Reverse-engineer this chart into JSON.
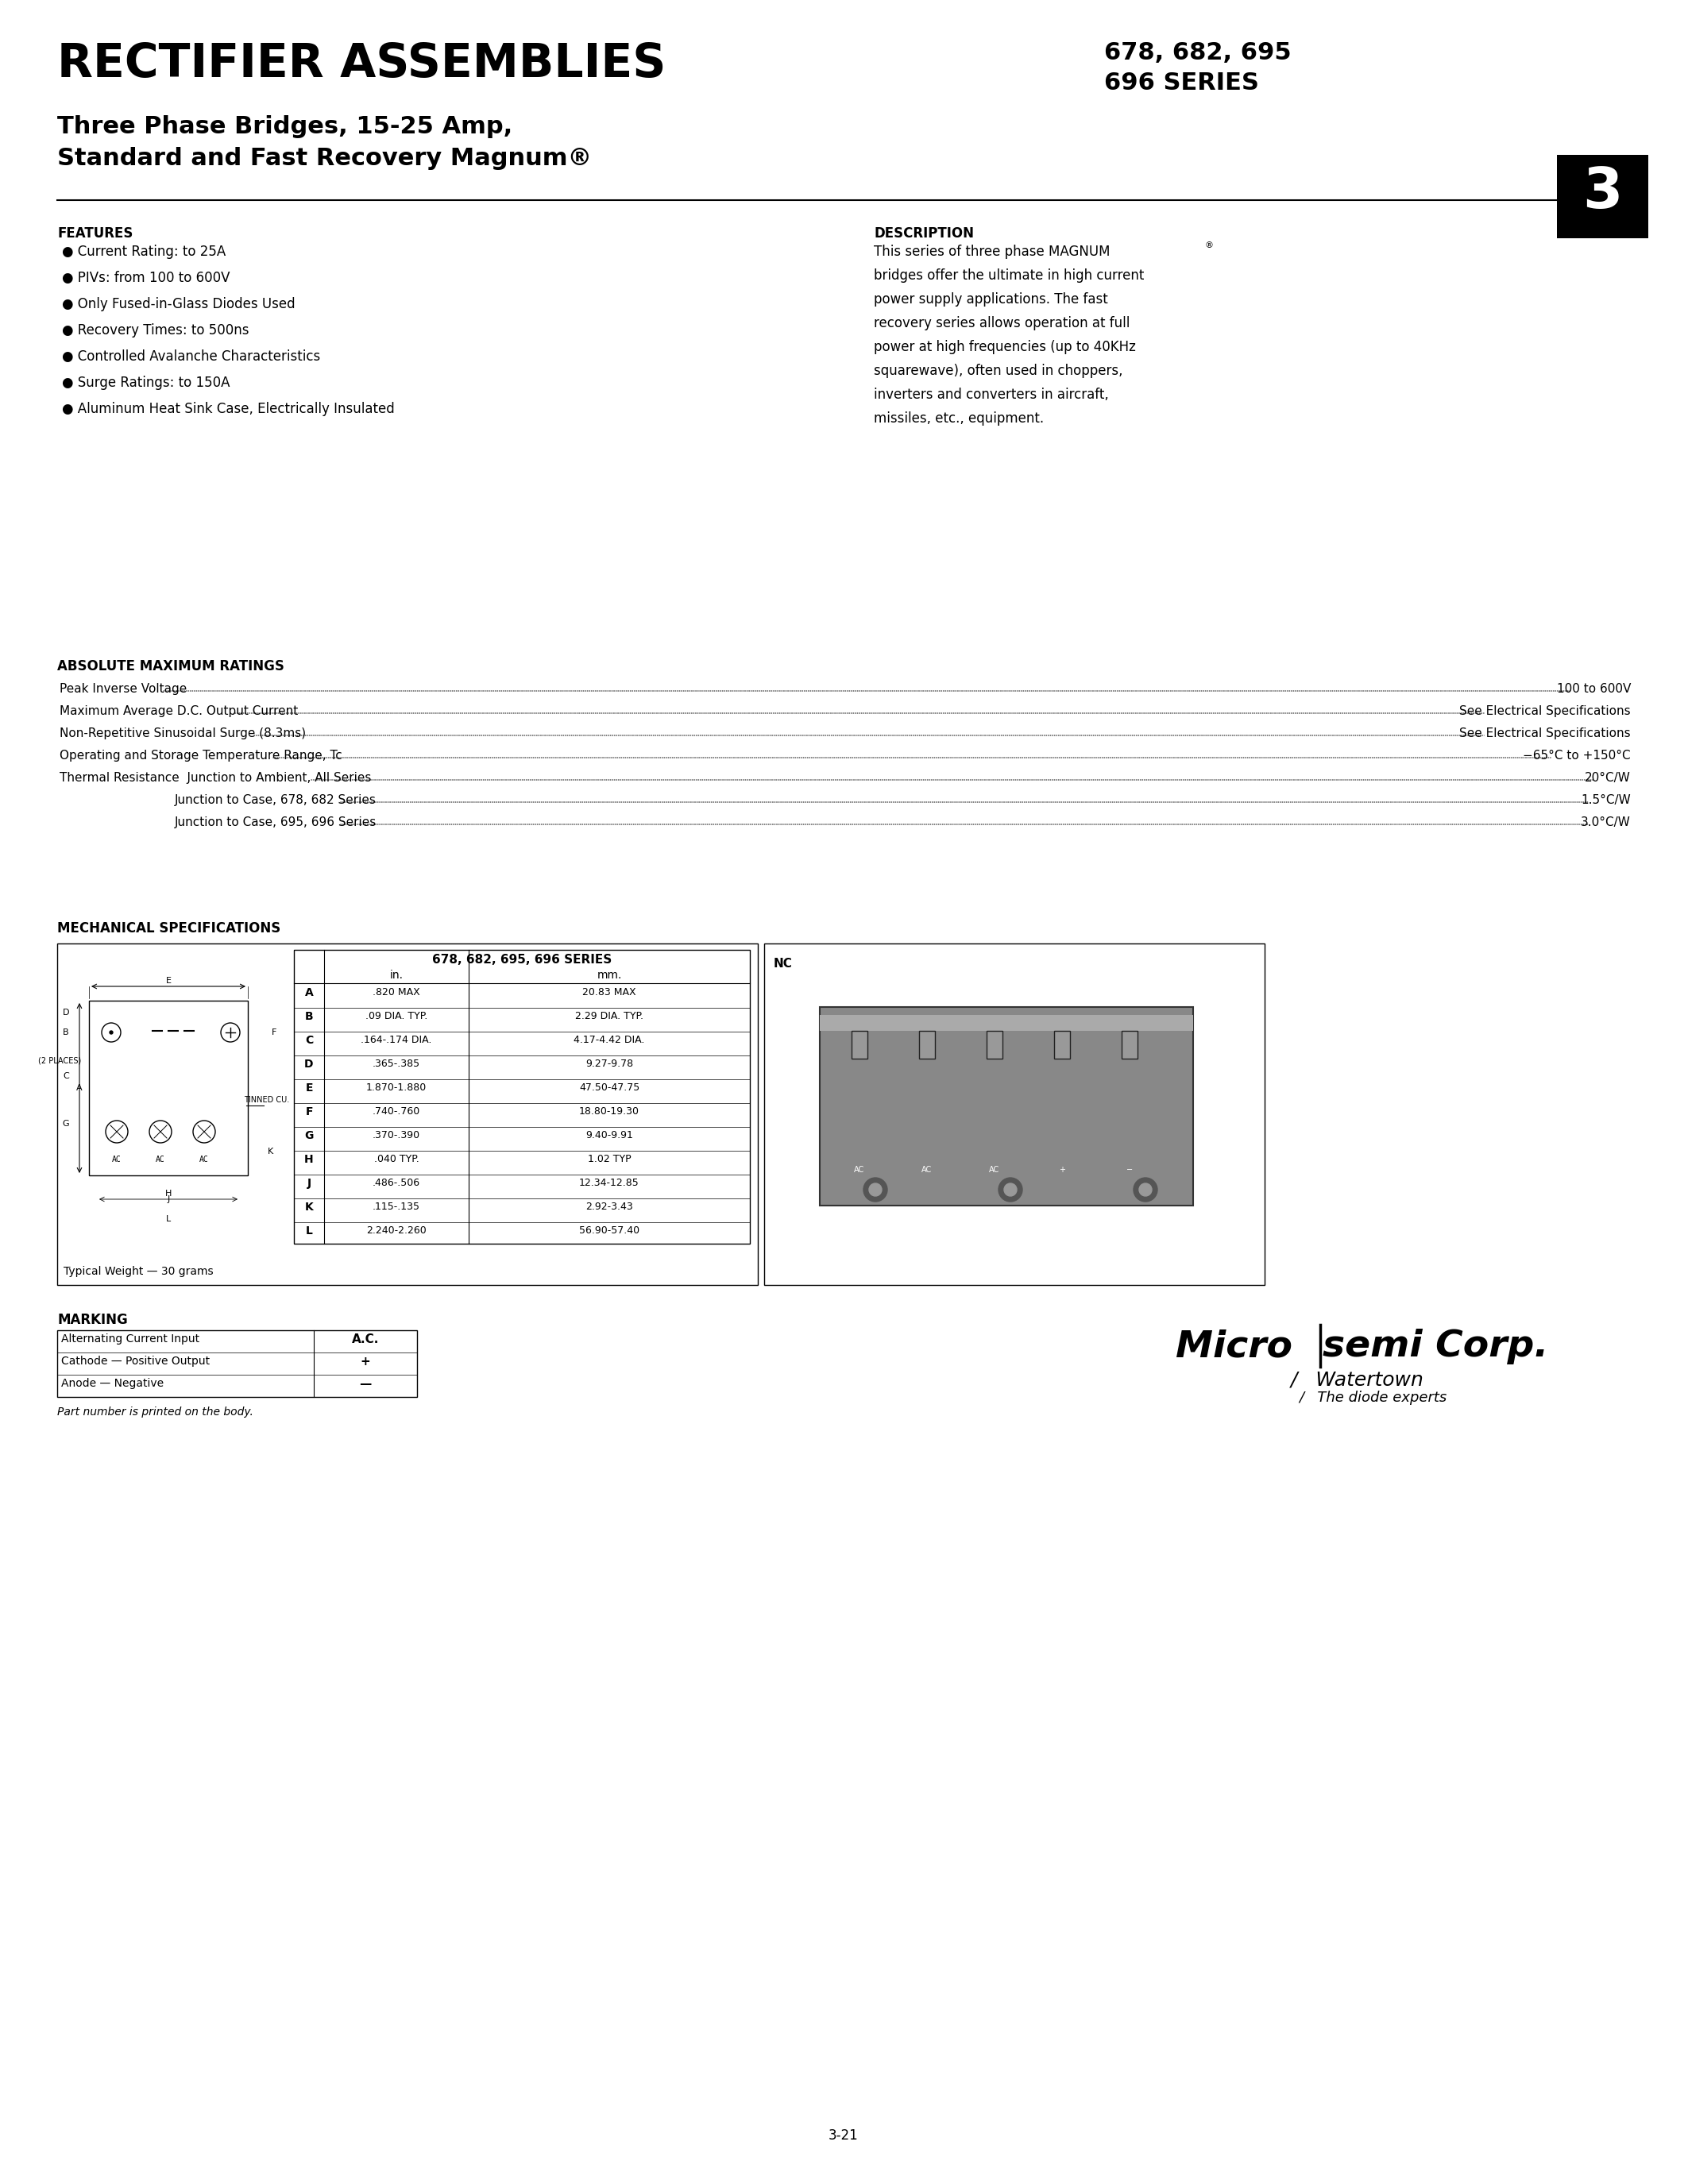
{
  "title_main": "RECTIFIER ASSEMBLIES",
  "title_sub1": "Three Phase Bridges, 15-25 Amp,",
  "title_sub2": "Standard and Fast Recovery Magnum®",
  "series_title1": "678, 682, 695",
  "series_title2": "696 SERIES",
  "section_number": "3",
  "features_title": "FEATURES",
  "features": [
    "Current Rating: to 25A",
    "PIVs: from 100 to 600V",
    "Only Fused-in-Glass Diodes Used",
    "Recovery Times: to 500ns",
    "Controlled Avalanche Characteristics",
    "Surge Ratings: to 150A",
    "Aluminum Heat Sink Case, Electrically Insulated"
  ],
  "description_title": "DESCRIPTION",
  "description_lines": [
    "This series of three phase MAGNUM®",
    "bridges offer the ultimate in high current",
    "power supply applications. The fast",
    "recovery series allows operation at full",
    "power at high frequencies (up to 40KHz",
    "squarewave), often used in choppers,",
    "inverters and converters in aircraft,",
    "missiles, etc., equipment."
  ],
  "abs_max_title": "ABSOLUTE MAXIMUM RATINGS",
  "abs_max_rows": [
    [
      "Peak Inverse Voltage",
      "100 to 600V",
      75
    ],
    [
      "Maximum Average D.C. Output Current",
      "See Electrical Specifications",
      75
    ],
    [
      "Non-Repetitive Sinusoidal Surge (8.3ms)",
      "See Electrical Specifications",
      75
    ],
    [
      "Operating and Storage Temperature Range, Tc",
      "−65°C to +150°C",
      75
    ],
    [
      "Thermal Resistance  Junction to Ambient, All Series",
      "20°C/W",
      75
    ],
    [
      "Junction to Case, 678, 682 Series",
      "1.5°C/W",
      220
    ],
    [
      "Junction to Case, 695, 696 Series",
      "3.0°C/W",
      220
    ]
  ],
  "mech_spec_title": "MECHANICAL SPECIFICATIONS",
  "series_header": "678, 682, 695, 696 SERIES",
  "dim_table_rows": [
    [
      "A",
      ".820 MAX",
      "20.83 MAX"
    ],
    [
      "B",
      ".09 DIA. TYP.",
      "2.29 DIA. TYP."
    ],
    [
      "C",
      ".164-.174 DIA.",
      "4.17-4.42 DIA."
    ],
    [
      "D",
      ".365-.385",
      "9.27-9.78"
    ],
    [
      "E",
      "1.870-1.880",
      "47.50-47.75"
    ],
    [
      "F",
      ".740-.760",
      "18.80-19.30"
    ],
    [
      "G",
      ".370-.390",
      "9.40-9.91"
    ],
    [
      "H",
      ".040 TYP.",
      "1.02 TYP"
    ],
    [
      "J",
      ".486-.506",
      "12.34-12.85"
    ],
    [
      "K",
      ".115-.135",
      "2.92-3.43"
    ],
    [
      "L",
      "2.240-2.260",
      "56.90-57.40"
    ]
  ],
  "typical_weight": "Typical Weight — 30 grams",
  "marking_title": "MARKING",
  "marking_rows": [
    [
      "Alternating Current Input",
      "A.C."
    ],
    [
      "Cathode — Positive Output",
      "+"
    ],
    [
      "Anode — Negative",
      "—"
    ]
  ],
  "marking_note": "Part number is printed on the body.",
  "page_number": "3-21",
  "bg_color": "#ffffff"
}
